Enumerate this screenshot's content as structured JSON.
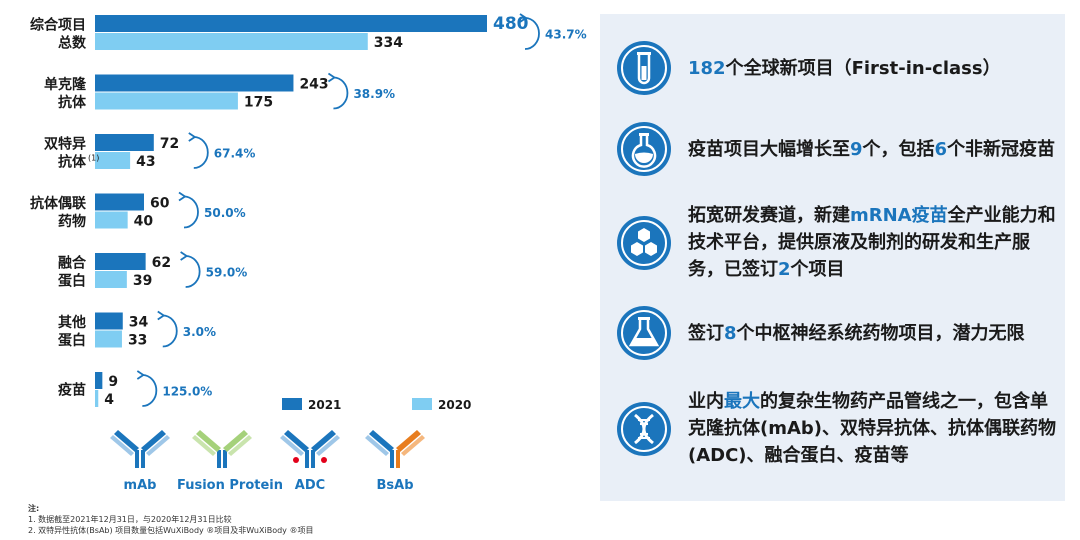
{
  "chart_data": {
    "type": "bar",
    "orientation": "horizontal",
    "categories": [
      [
        "综合项目",
        "总数"
      ],
      [
        "单克隆",
        "抗体"
      ],
      [
        "双特异",
        "抗体"
      ],
      [
        "抗体偶联",
        "药物"
      ],
      [
        "融合",
        "蛋白"
      ],
      [
        "其他",
        "蛋白"
      ],
      [
        "疫苗"
      ]
    ],
    "category_superscripts": [
      "",
      "",
      "(1)",
      "",
      "",
      "",
      ""
    ],
    "series": [
      {
        "name": "2021",
        "color": "#1b75bc",
        "values": [
          480,
          243,
          72,
          60,
          62,
          34,
          9
        ]
      },
      {
        "name": "2020",
        "color": "#7fcdf2",
        "values": [
          334,
          175,
          43,
          40,
          39,
          33,
          4
        ]
      }
    ],
    "growth": [
      "43.7%",
      "38.9%",
      "67.4%",
      "50.0%",
      "59.0%",
      "3.0%",
      "125.0%"
    ],
    "xlim": [
      0,
      480
    ],
    "legend_position": "bottom-right",
    "grid": false
  },
  "antibody_types": [
    {
      "label": "mAb",
      "icon": "mab-antibody-icon"
    },
    {
      "label": "Fusion Protein",
      "icon": "fusion-protein-icon"
    },
    {
      "label": "ADC",
      "icon": "adc-antibody-icon"
    },
    {
      "label": "BsAb",
      "icon": "bsab-antibody-icon"
    }
  ],
  "notes": {
    "title": "注:",
    "lines": [
      "1. 数据截至2021年12月31日，与2020年12月31日比较",
      "2. 双特异性抗体(BsAb) 项目数量包括WuXiBody ®项目及非WuXiBody ®项目"
    ]
  },
  "highlights": [
    {
      "icon": "test-tube-icon",
      "parts": [
        {
          "t": "182",
          "h": true
        },
        {
          "t": "个全球新项目（First-in-class）",
          "h": false
        }
      ]
    },
    {
      "icon": "flask-icon",
      "parts": [
        {
          "t": "疫苗项目大幅增长至",
          "h": false
        },
        {
          "t": "9",
          "h": true
        },
        {
          "t": "个，包括",
          "h": false
        },
        {
          "t": "6",
          "h": true
        },
        {
          "t": "个非新冠疫苗",
          "h": false
        }
      ]
    },
    {
      "icon": "molecule-icon",
      "parts": [
        {
          "t": "拓宽研发赛道，新建",
          "h": false
        },
        {
          "t": "mRNA疫苗",
          "h": true
        },
        {
          "t": "全产业能力和技术平台，提供原液及制剂的研发和生产服务，已签订",
          "h": false
        },
        {
          "t": "2",
          "h": true
        },
        {
          "t": "个项目",
          "h": false
        }
      ]
    },
    {
      "icon": "beaker-icon",
      "parts": [
        {
          "t": "签订",
          "h": false
        },
        {
          "t": "8",
          "h": true
        },
        {
          "t": "个中枢神经系统药物项目，潜力无限",
          "h": false
        }
      ]
    },
    {
      "icon": "dna-icon",
      "parts": [
        {
          "t": "业内",
          "h": false
        },
        {
          "t": "最大",
          "h": true
        },
        {
          "t": "的复杂生物药产品管线之一，包含单克隆抗体(mAb)、双特异抗体、抗体偶联药物(ADC)、融合蛋白、疫苗等",
          "h": false
        }
      ]
    }
  ],
  "colors": {
    "accent": "#1b75bc",
    "light": "#7fcdf2",
    "panel": "#e9eff7"
  }
}
